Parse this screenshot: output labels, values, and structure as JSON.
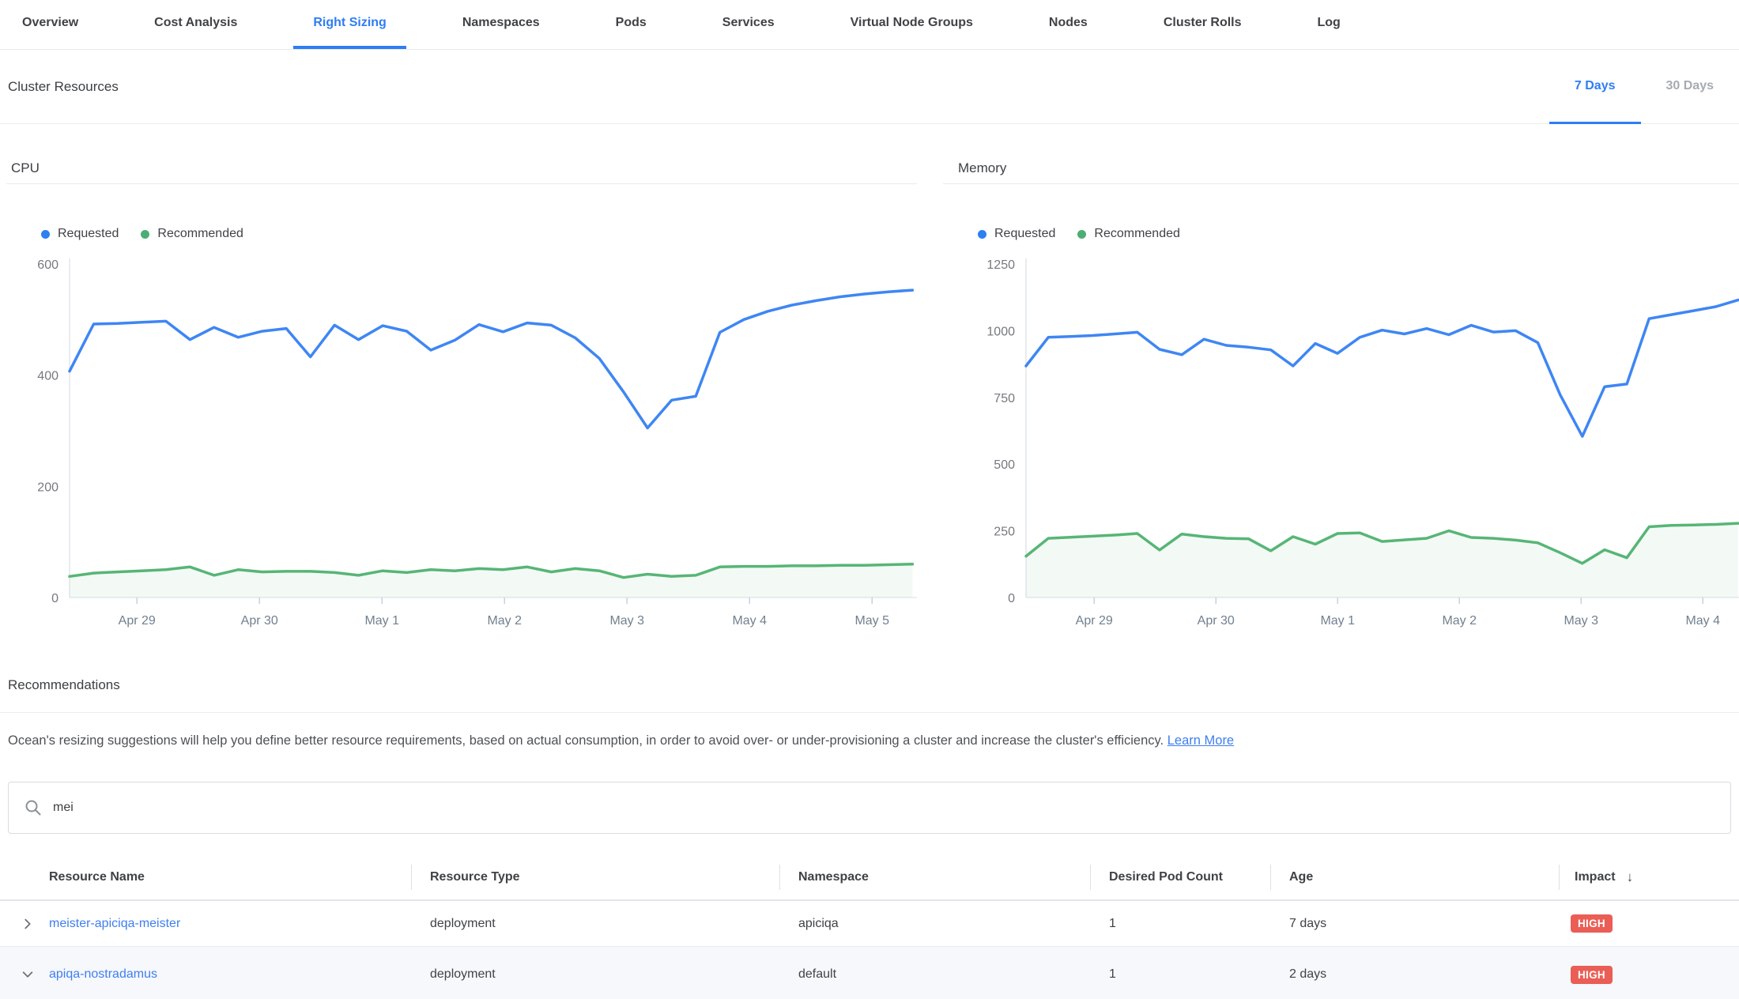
{
  "nav": {
    "tabs": [
      {
        "label": "Overview",
        "active": false
      },
      {
        "label": "Cost Analysis",
        "active": false
      },
      {
        "label": "Right Sizing",
        "active": true
      },
      {
        "label": "Namespaces",
        "active": false
      },
      {
        "label": "Pods",
        "active": false
      },
      {
        "label": "Services",
        "active": false
      },
      {
        "label": "Virtual Node Groups",
        "active": false
      },
      {
        "label": "Nodes",
        "active": false
      },
      {
        "label": "Cluster Rolls",
        "active": false
      },
      {
        "label": "Log",
        "active": false
      }
    ]
  },
  "cluster_resources": {
    "title": "Cluster Resources",
    "range_tabs": [
      {
        "label": "7 Days",
        "active": true
      },
      {
        "label": "30 Days",
        "active": false
      }
    ]
  },
  "charts": {
    "legend_requested": "Requested",
    "legend_recommended": "Recommended"
  },
  "chart_data": [
    {
      "type": "line",
      "title": "CPU",
      "x_tick_labels": [
        "Apr 29",
        "Apr 30",
        "May 1",
        "May 2",
        "May 3",
        "May 4",
        "May 5"
      ],
      "x_range": [
        -0.55,
        6.33
      ],
      "ylim": [
        0,
        600
      ],
      "y_ticks": [
        600,
        400,
        200,
        0
      ],
      "grid": false,
      "legend_position": "top",
      "series": [
        {
          "name": "Requested",
          "color": "#3e86f4",
          "area": false,
          "values": [
            407,
            492,
            493,
            495,
            497,
            464,
            486,
            468,
            479,
            484,
            433,
            490,
            464,
            489,
            479,
            445,
            463,
            491,
            478,
            494,
            490,
            467,
            430,
            370,
            305,
            355,
            362,
            477,
            500,
            515,
            526,
            534,
            541,
            546,
            550,
            553
          ]
        },
        {
          "name": "Recommended",
          "color": "#57b576",
          "area": true,
          "values": [
            38,
            44,
            46,
            48,
            50,
            55,
            40,
            50,
            46,
            47,
            47,
            45,
            40,
            48,
            45,
            50,
            48,
            52,
            50,
            55,
            46,
            52,
            48,
            36,
            42,
            38,
            40,
            55,
            56,
            56,
            57,
            57,
            58,
            58,
            59,
            60
          ]
        }
      ]
    },
    {
      "type": "line",
      "title": "Memory",
      "x_tick_labels": [
        "Apr 29",
        "Apr 30",
        "May 1",
        "May 2",
        "May 3",
        "May 4"
      ],
      "x_range": [
        -0.56,
        5.29
      ],
      "ylim": [
        0,
        1250
      ],
      "y_ticks": [
        1250,
        1000,
        750,
        500,
        250,
        0
      ],
      "grid": false,
      "legend_position": "top",
      "series": [
        {
          "name": "Requested",
          "color": "#3e86f4",
          "area": false,
          "values": [
            868,
            975,
            978,
            982,
            988,
            994,
            930,
            910,
            968,
            945,
            938,
            928,
            868,
            952,
            915,
            975,
            1002,
            988,
            1008,
            985,
            1020,
            995,
            1000,
            955,
            760,
            604,
            790,
            800,
            1045,
            1060,
            1075,
            1090,
            1115
          ]
        },
        {
          "name": "Recommended",
          "color": "#57b576",
          "area": true,
          "values": [
            155,
            222,
            226,
            230,
            234,
            240,
            178,
            238,
            228,
            222,
            220,
            175,
            228,
            200,
            240,
            242,
            210,
            216,
            222,
            250,
            225,
            222,
            215,
            205,
            168,
            128,
            179,
            149,
            265,
            270,
            272,
            274,
            278
          ]
        }
      ]
    }
  ],
  "recommendations": {
    "title": "Recommendations",
    "description": "Ocean's resizing suggestions will help you define better resource requirements, based on actual consumption, in order to avoid over- or under-provisioning a cluster and increase the cluster's efficiency.",
    "learn_more": "Learn More"
  },
  "search": {
    "value": "mei"
  },
  "table": {
    "columns": [
      "Resource Name",
      "Resource Type",
      "Namespace",
      "Desired Pod Count",
      "Age",
      "Impact"
    ],
    "sort_column": "Impact",
    "sort_indicator": "↓",
    "rows": [
      {
        "name": "meister-apiciqa-meister",
        "type": "deployment",
        "namespace": "apiciqa",
        "pods": "1",
        "age": "7 days",
        "impact": "HIGH",
        "expanded": false
      },
      {
        "name": "apiqa-nostradamus",
        "type": "deployment",
        "namespace": "default",
        "pods": "1",
        "age": "2 days",
        "impact": "HIGH",
        "expanded": true
      }
    ]
  },
  "colors": {
    "accent_blue": "#2e7df5",
    "link_blue": "#3f7ef0",
    "requested_line": "#3e86f4",
    "recommended_line": "#57b576",
    "badge_high": "#ea5e56"
  }
}
